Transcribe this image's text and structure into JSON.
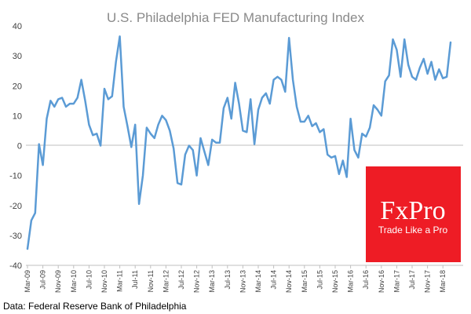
{
  "chart_data": {
    "type": "line",
    "title": "U.S. Philadelphia  FED Manufacturing  Index",
    "xlabel": "",
    "ylabel": "",
    "ylim": [
      -40,
      40
    ],
    "yticks": [
      -40,
      -30,
      -20,
      -10,
      0,
      10,
      20,
      30,
      40
    ],
    "x_tick_labels": [
      "Mar-09",
      "Jul-09",
      "Nov-09",
      "Mar-10",
      "Jul-10",
      "Nov-10",
      "Mar-11",
      "Jul-11",
      "Nov-11",
      "Mar-12",
      "Jul-12",
      "Nov-12",
      "Mar-13",
      "Jul-13",
      "Nov-13",
      "Mar-14",
      "Jul-14",
      "Nov-14",
      "Mar-15",
      "Jul-15",
      "Nov-15",
      "Mar-16",
      "Jul-16",
      "Nov-16",
      "Mar-17",
      "Jul-17",
      "Nov-17",
      "Mar-18"
    ],
    "grid": false,
    "legend": "none",
    "colors": {
      "line": "#5b9bd5",
      "axis": "#bfbfbf"
    },
    "series": [
      {
        "x_start": "2009-03",
        "frequency": "monthly",
        "values": [
          -34.5,
          -25,
          -22.5,
          0.5,
          -6.5,
          9,
          15,
          13,
          15.5,
          16,
          13,
          14,
          14,
          16,
          22,
          15,
          7,
          3.5,
          4,
          0,
          19,
          15.5,
          16.5,
          28,
          36.5,
          13,
          6.5,
          -0.5,
          7,
          -19.5,
          -10,
          6,
          4,
          2.5,
          7,
          10,
          8.5,
          5,
          -1,
          -12.5,
          -13,
          -3,
          0,
          -1.5,
          -10,
          2.5,
          -2,
          -6.5,
          2,
          1,
          1,
          12.5,
          16,
          9,
          21,
          14,
          5,
          4.5,
          15.5,
          0.5,
          12,
          16,
          17.5,
          14,
          22,
          23,
          22,
          18,
          36,
          22,
          13,
          8,
          8,
          10,
          6.5,
          7.5,
          4.5,
          5.5,
          -3,
          -4,
          -3.5,
          -9.5,
          -5,
          -10.5,
          9,
          -1.5,
          -4,
          4,
          3,
          6,
          13.5,
          12,
          10,
          21.5,
          23.5,
          35.5,
          32,
          23,
          35.5,
          27,
          23,
          22,
          26,
          29,
          24,
          28,
          22,
          25.5,
          22.5,
          23,
          34.5
        ]
      }
    ]
  },
  "brand": {
    "name": "FxPro",
    "tagline": "Trade Like a Pro",
    "color": "#ee1c25"
  },
  "source": "Data: Federal Reserve Bank of Philadelphia"
}
